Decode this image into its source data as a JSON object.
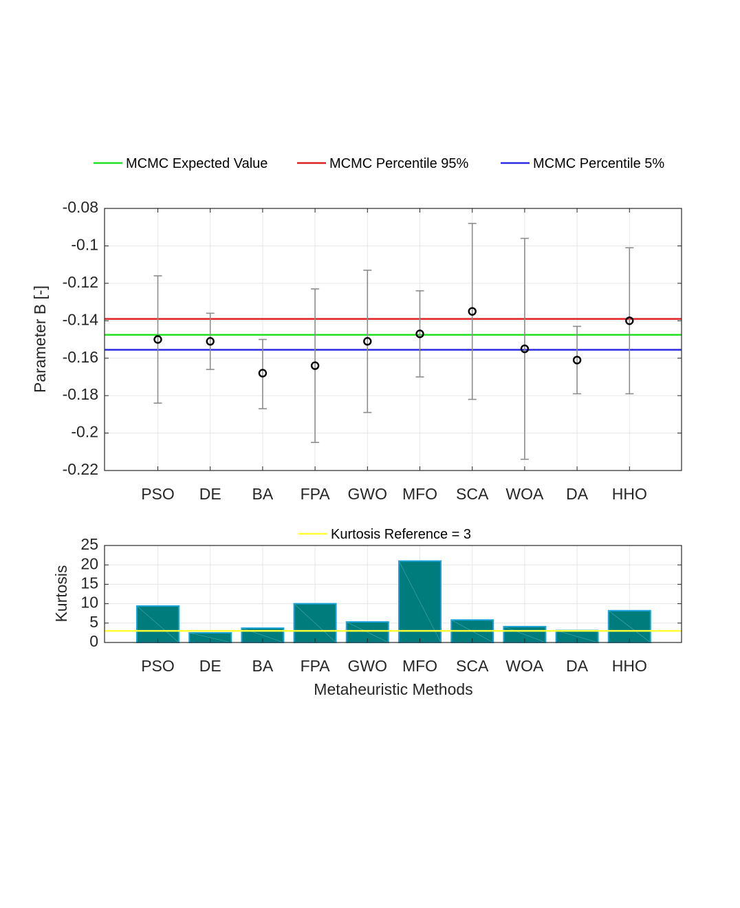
{
  "legend_top": [
    {
      "label": "MCMC Expected Value",
      "color": "#22e022"
    },
    {
      "label": "MCMC Percentile 95%",
      "color": "#e02020"
    },
    {
      "label": "MCMC Percentile 5%",
      "color": "#2a2ae6"
    }
  ],
  "legend_bottom": [
    {
      "label": "Kurtosis Reference = 3",
      "color": "#ffff33"
    }
  ],
  "chart_data": [
    {
      "type": "scatter",
      "subtype": "errorbar",
      "categories": [
        "PSO",
        "DE",
        "BA",
        "FPA",
        "GWO",
        "MFO",
        "SCA",
        "WOA",
        "DA",
        "HHO"
      ],
      "values": [
        -0.15,
        -0.151,
        -0.168,
        -0.164,
        -0.151,
        -0.147,
        -0.135,
        -0.155,
        -0.161,
        -0.14
      ],
      "upper": [
        -0.116,
        -0.136,
        -0.15,
        -0.123,
        -0.113,
        -0.124,
        -0.088,
        -0.096,
        -0.143,
        -0.101
      ],
      "lower": [
        -0.184,
        -0.166,
        -0.187,
        -0.205,
        -0.189,
        -0.17,
        -0.182,
        -0.214,
        -0.179,
        -0.179
      ],
      "ylabel": "Parameter B [-]",
      "xlabel": "",
      "ylim": [
        -0.22,
        -0.08
      ],
      "yticks": [
        -0.08,
        -0.1,
        -0.12,
        -0.14,
        -0.16,
        -0.18,
        -0.2,
        -0.22
      ],
      "ytick_labels": [
        "-0.08",
        "-0.1",
        "-0.12",
        "-0.14",
        "-0.16",
        "-0.18",
        "-0.2",
        "-0.22"
      ],
      "reference_lines": [
        {
          "name": "MCMC Expected Value",
          "y": -0.1475,
          "color": "#22e022"
        },
        {
          "name": "MCMC Percentile 95%",
          "y": -0.139,
          "color": "#e02020"
        },
        {
          "name": "MCMC Percentile 5%",
          "y": -0.1555,
          "color": "#2a2ae6"
        }
      ],
      "grid": true,
      "legend": "top",
      "marker_color": "#000000",
      "errorbar_color": "#8c8c8c"
    },
    {
      "type": "bar",
      "categories": [
        "PSO",
        "DE",
        "BA",
        "FPA",
        "GWO",
        "MFO",
        "SCA",
        "WOA",
        "DA",
        "HHO"
      ],
      "values": [
        9.4,
        2.5,
        3.7,
        10.0,
        5.3,
        21.0,
        5.8,
        4.1,
        3.1,
        8.2
      ],
      "ylabel": "Kurtosis",
      "xlabel": "Metaheuristic Methods",
      "ylim": [
        0,
        25
      ],
      "yticks": [
        0,
        5,
        10,
        15,
        20,
        25
      ],
      "ytick_labels": [
        "0",
        "5",
        "10",
        "15",
        "20",
        "25"
      ],
      "reference_lines": [
        {
          "name": "Kurtosis Reference = 3",
          "y": 3,
          "color": "#ffff33"
        }
      ],
      "grid": true,
      "legend": "top",
      "bar_color": "#007c7c",
      "bar_edge_color": "#1aa3d9"
    }
  ]
}
